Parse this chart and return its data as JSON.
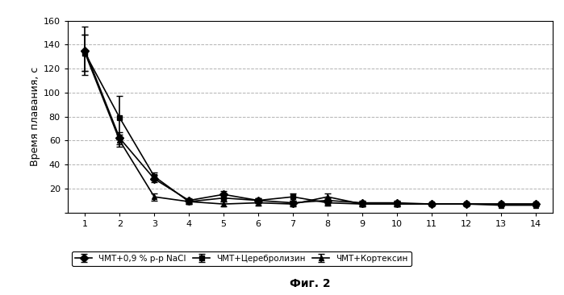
{
  "x": [
    1,
    2,
    3,
    4,
    5,
    6,
    7,
    8,
    9,
    10,
    11,
    12,
    13,
    14
  ],
  "nacl": [
    135,
    62,
    28,
    10,
    15,
    10,
    8,
    10,
    8,
    8,
    7,
    7,
    7,
    7
  ],
  "nacl_err": [
    20,
    5,
    3,
    2,
    3,
    2,
    2,
    2,
    2,
    2,
    1,
    1,
    1,
    1
  ],
  "cerebro": [
    133,
    79,
    30,
    9,
    12,
    10,
    13,
    8,
    7,
    7,
    7,
    7,
    7,
    7
  ],
  "cerebro_err": [
    15,
    18,
    3,
    2,
    3,
    2,
    3,
    2,
    2,
    2,
    1,
    1,
    1,
    1
  ],
  "cortex": [
    133,
    60,
    13,
    9,
    7,
    8,
    7,
    13,
    7,
    7,
    7,
    7,
    6,
    6
  ],
  "cortex_err": [
    15,
    5,
    3,
    2,
    2,
    2,
    2,
    3,
    2,
    2,
    1,
    1,
    1,
    1
  ],
  "ylabel": "Время плавания, с",
  "xlabel": "Фиг. 2",
  "legend1": "ЧМТ+0,9 % р-р NaCl",
  "legend2": "ЧМТ+Церебролизин",
  "legend3": "ЧМТ+Кортексин",
  "ylim": [
    0,
    160
  ],
  "yticks": [
    0,
    20,
    40,
    60,
    80,
    100,
    120,
    140,
    160
  ],
  "background_color": "#ffffff",
  "line_color": "#000000",
  "grid_color": "#aaaaaa"
}
